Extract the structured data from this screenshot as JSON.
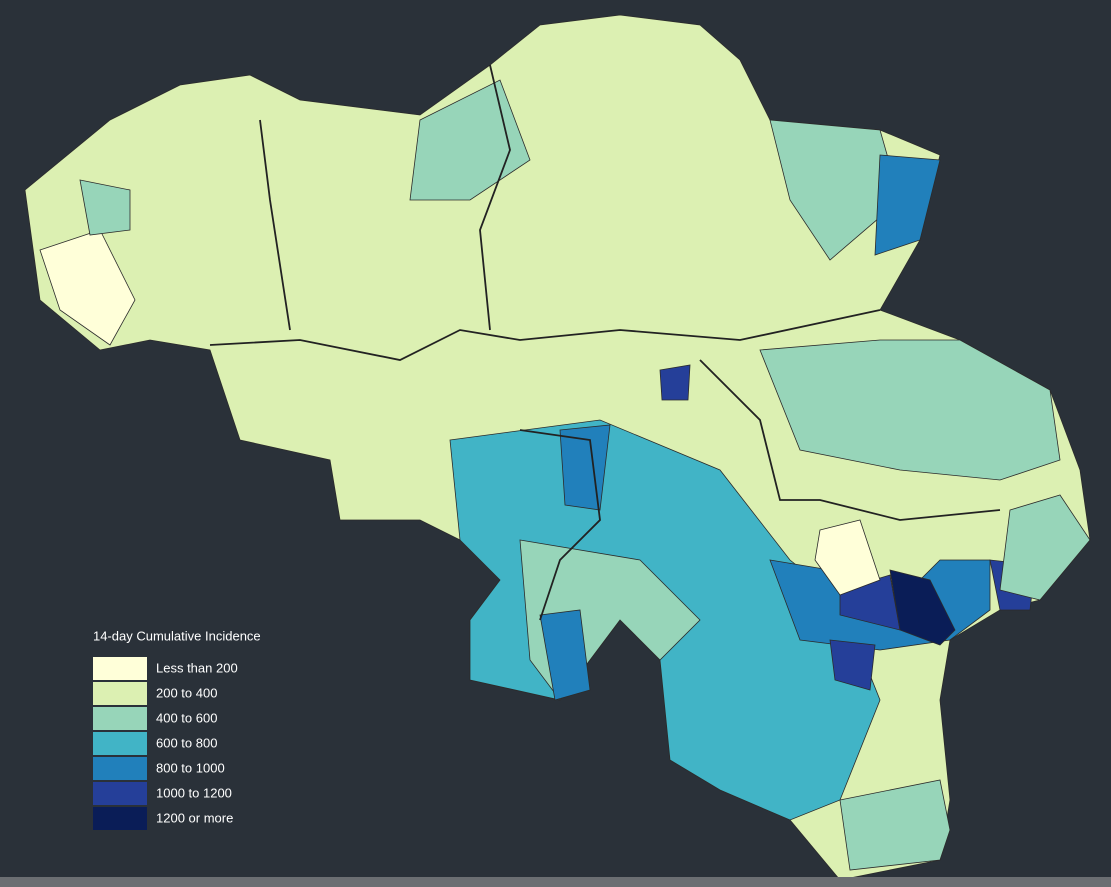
{
  "legend": {
    "title": "14-day Cumulative Incidence",
    "items": [
      {
        "label": "Less than 200",
        "color": "#ffffd9"
      },
      {
        "label": "200 to 400",
        "color": "#dcf0b2"
      },
      {
        "label": "400 to 600",
        "color": "#97d5b9"
      },
      {
        "label": "600 to 800",
        "color": "#41b4c6"
      },
      {
        "label": "800 to 1000",
        "color": "#2180bb"
      },
      {
        "label": "1000 to 1200",
        "color": "#253f99"
      },
      {
        "label": "1200 or more",
        "color": "#0a1d57"
      }
    ]
  }
}
